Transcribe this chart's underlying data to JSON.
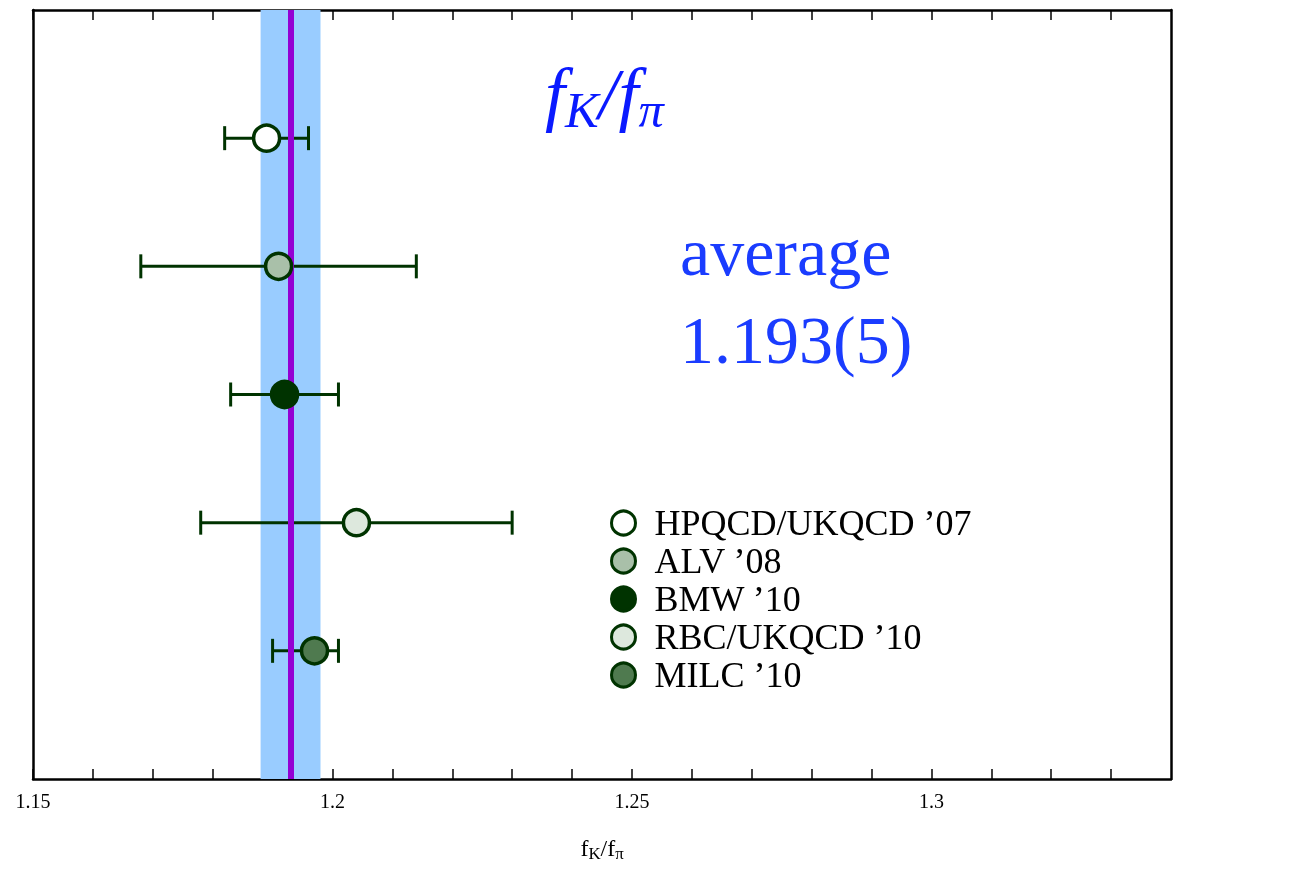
{
  "chart_data": {
    "type": "scatter",
    "orientation": "horizontal",
    "title": "f$_{K}$/f$_{π}$",
    "xlabel": "f$_{K}$/f$_{π}$",
    "annotations": [
      "average",
      "1.193(5)"
    ],
    "categories": [
      null,
      null,
      null,
      null,
      null
    ],
    "xlim": [
      1.15,
      1.34
    ],
    "xticks": [
      1.15,
      {
        "value": 1.16,
        "label": null
      },
      {
        "value": 1.17,
        "label": null
      },
      {
        "value": 1.18,
        "label": null
      },
      {
        "value": 1.19,
        "label": null
      },
      1.2,
      {
        "value": 1.21,
        "label": null
      },
      {
        "value": 1.22,
        "label": null
      },
      {
        "value": 1.23,
        "label": null
      },
      {
        "value": 1.24,
        "label": null
      },
      1.25,
      {
        "value": 1.26,
        "label": null
      },
      {
        "value": 1.27,
        "label": null
      },
      {
        "value": 1.28,
        "label": null
      },
      {
        "value": 1.29,
        "label": null
      },
      1.3,
      {
        "value": 1.31,
        "label": null
      },
      {
        "value": 1.32,
        "label": null
      },
      {
        "value": 1.33,
        "label": null
      }
    ],
    "tick_labels": "x",
    "grid": false,
    "legend": "bottom right",
    "marker": "circle",
    "series": [
      {
        "name": "HPQCD/UKQCD ’07",
        "color": "#ffffff",
        "values": [
          1.189,
          null,
          null,
          null,
          null
        ],
        "errors": [
          [
            1.182,
            1.196
          ],
          null,
          null,
          null,
          null
        ]
      },
      {
        "name": "ALV ’08",
        "color": "#a9c0a9",
        "values": [
          null,
          1.191,
          null,
          null,
          null
        ],
        "errors": [
          null,
          [
            1.168,
            1.214
          ],
          null,
          null,
          null
        ]
      },
      {
        "name": "BMW ’10",
        "color": "#003300",
        "values": [
          null,
          null,
          1.192,
          null,
          null
        ],
        "errors": [
          null,
          null,
          [
            1.183,
            1.201
          ],
          null,
          null
        ]
      },
      {
        "name": "RBC/UKQCD ’10",
        "color": "#dde8dd",
        "values": [
          null,
          null,
          null,
          1.204,
          null
        ],
        "errors": [
          null,
          null,
          null,
          [
            1.178,
            1.23
          ],
          null
        ]
      },
      {
        "name": "MILC ’10",
        "color": "#4f7a4f",
        "values": [
          null,
          null,
          null,
          null,
          1.197
        ],
        "errors": [
          null,
          null,
          null,
          null,
          [
            1.19,
            1.201
          ]
        ]
      }
    ],
    "ref_lines": [
      {
        "axis": "x",
        "value": 1.193,
        "color": "#9400d3"
      }
    ],
    "bands": [
      {
        "axis": "x",
        "from": 1.188,
        "to": 1.198,
        "color": "#99ccff"
      }
    ]
  }
}
